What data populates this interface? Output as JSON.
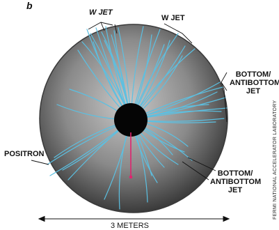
{
  "panel_letter": "b",
  "labels": {
    "w_jet_left": "W JET",
    "w_jet_right": "W JET",
    "bottom_jet_upper": [
      "BOTTOM/",
      "ANTIBOTTOM",
      "JET"
    ],
    "bottom_jet_lower": [
      "BOTTOM/",
      "ANTIBOTTOM",
      "JET"
    ],
    "positron": "POSITRON"
  },
  "scale_label": "3 METERS",
  "credit": "FERMI NATIONAL ACCELERATOR LABORATORY",
  "colors": {
    "tracks": "#5bc0e2",
    "positron_marker": "#e0236e",
    "detector_edge": "#3a3a3a",
    "detector_fill_inner": "#c8c8c8",
    "detector_fill_outer": "#2e2e2e",
    "core": "#050505"
  }
}
